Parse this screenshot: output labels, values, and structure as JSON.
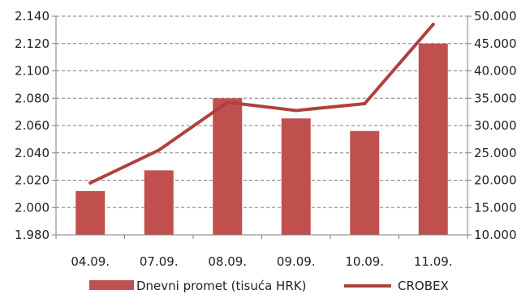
{
  "chart_data": {
    "type": "bar",
    "categories": [
      "04.09.",
      "07.09.",
      "08.09.",
      "09.09.",
      "10.09.",
      "11.09."
    ],
    "series": [
      {
        "name": "Dnevni promet (tisuća HRK)",
        "type": "bar",
        "axis": "right",
        "values": [
          18000,
          21800,
          35000,
          31300,
          29000,
          45000
        ],
        "color": "#c0504d"
      },
      {
        "name": "CROBEX",
        "type": "line",
        "axis": "left",
        "values": [
          2018,
          2042,
          2077,
          2071,
          2076,
          2134
        ],
        "color": "#b0403e"
      }
    ],
    "y_left": {
      "lim": [
        1980,
        2140
      ],
      "ticks": [
        1980,
        2000,
        2020,
        2040,
        2060,
        2080,
        2100,
        2120,
        2140
      ],
      "tick_labels": [
        "1.980",
        "2.000",
        "2.020",
        "2.040",
        "2.060",
        "2.080",
        "2.100",
        "2.120",
        "2.140"
      ]
    },
    "y_right": {
      "lim": [
        10000,
        50000
      ],
      "ticks": [
        10000,
        15000,
        20000,
        25000,
        30000,
        35000,
        40000,
        45000,
        50000
      ],
      "tick_labels": [
        "10.000",
        "15.000",
        "20.000",
        "25.000",
        "30.000",
        "35.000",
        "40.000",
        "45.000",
        "50.000"
      ]
    },
    "grid": true,
    "legend": {
      "position": "bottom",
      "entries": [
        "Dnevni promet (tisuća HRK)",
        "CROBEX"
      ]
    }
  }
}
